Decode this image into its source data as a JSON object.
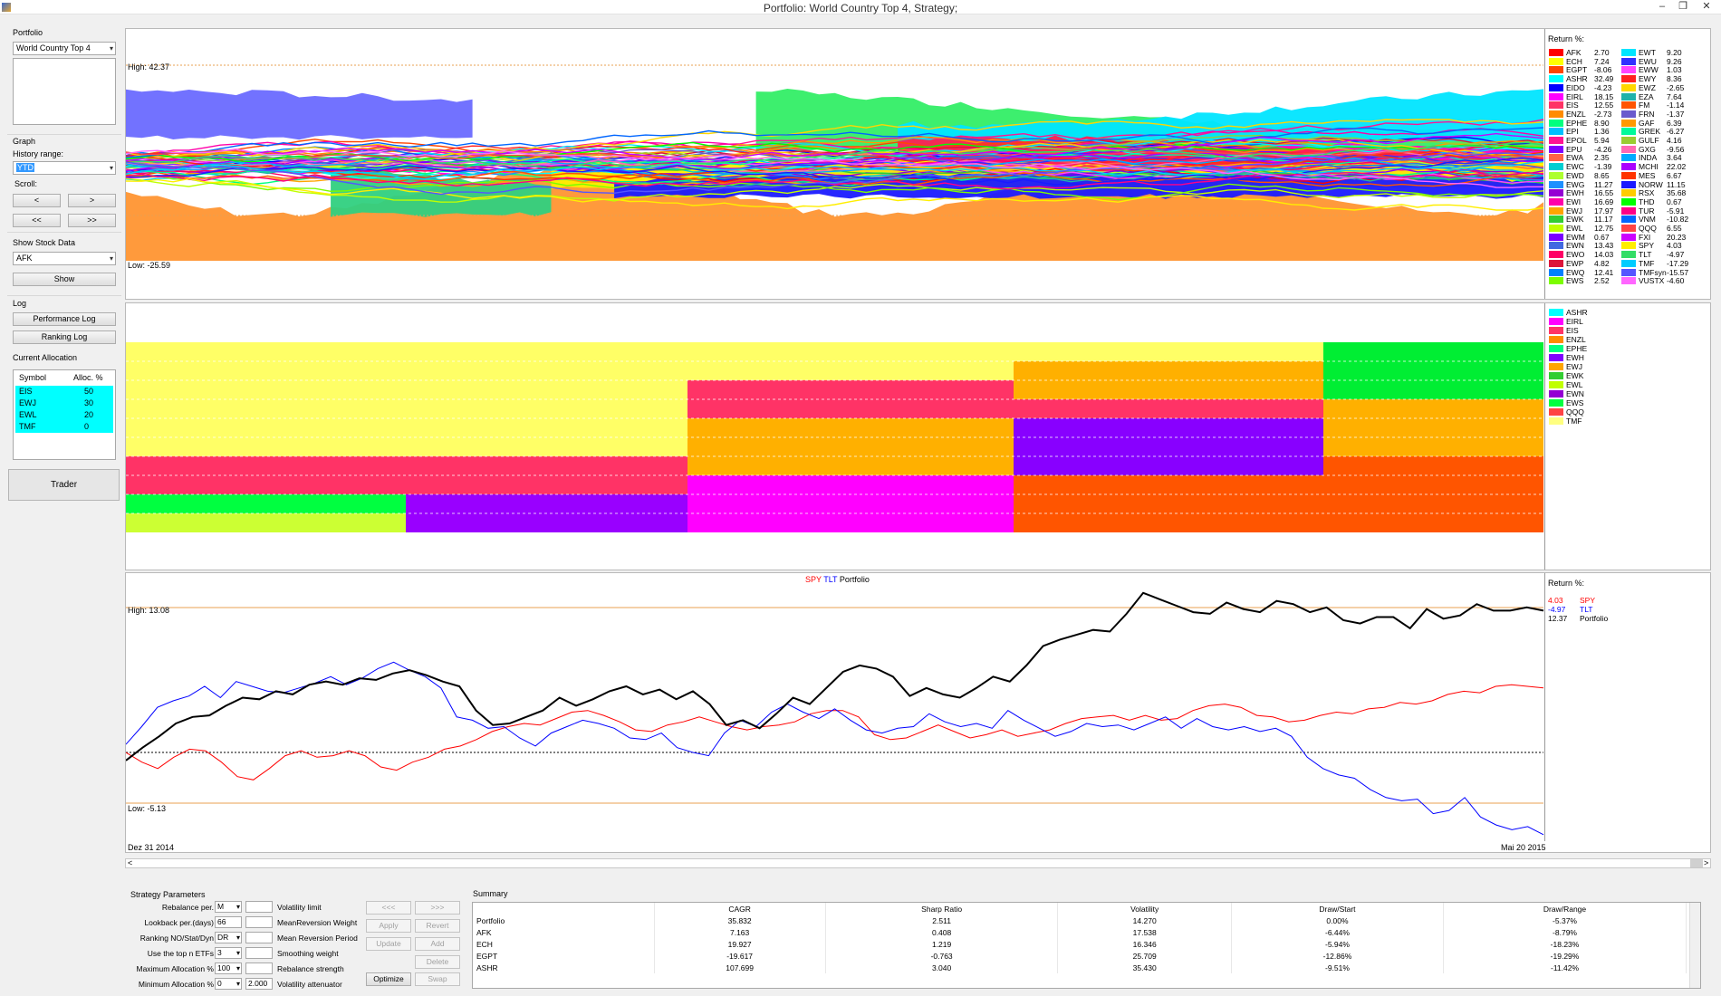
{
  "window": {
    "title": "Portfolio: World Country Top 4, Strategy;"
  },
  "sidebar": {
    "portfolio_label": "Portfolio",
    "portfolio_value": "World Country Top 4",
    "graph_label": "Graph",
    "history_label": "History range:",
    "history_value": "YTD",
    "scroll_label": "Scroll:",
    "scroll_back": "<",
    "scroll_fwd": ">",
    "scroll_back_far": "<<",
    "scroll_fwd_far": ">>",
    "stock_label": "Show Stock Data",
    "stock_value": "AFK",
    "show_label": "Show",
    "log_label": "Log",
    "perf_log": "Performance Log",
    "rank_log": "Ranking Log",
    "alloc_label": "Current Allocation",
    "alloc_head_symbol": "Symbol",
    "alloc_head_pct": "Alloc. %",
    "alloc_rows": [
      {
        "symbol": "EIS",
        "pct": "50"
      },
      {
        "symbol": "EWJ",
        "pct": "30"
      },
      {
        "symbol": "EWL",
        "pct": "20"
      },
      {
        "symbol": "TMF",
        "pct": "0"
      }
    ],
    "trader_label": "Trader"
  },
  "top_chart": {
    "high": "High: 42.37",
    "low": "Low: -25.59",
    "legend_title": "Return %:",
    "legend_left": [
      {
        "s": "AFK",
        "v": "2.70",
        "c": "#ff0000"
      },
      {
        "s": "ECH",
        "v": "7.24",
        "c": "#ffff00"
      },
      {
        "s": "EGPT",
        "v": "-8.06",
        "c": "#ff4500"
      },
      {
        "s": "ASHR",
        "v": "32.49",
        "c": "#00ffff"
      },
      {
        "s": "EIDO",
        "v": "-4.23",
        "c": "#0000ff"
      },
      {
        "s": "EIRL",
        "v": "18.15",
        "c": "#ff00ff"
      },
      {
        "s": "EIS",
        "v": "12.55",
        "c": "#ff3366"
      },
      {
        "s": "ENZL",
        "v": "-2.73",
        "c": "#ff8c00"
      },
      {
        "s": "EPHE",
        "v": "8.90",
        "c": "#00ff7f"
      },
      {
        "s": "EPI",
        "v": "1.36",
        "c": "#00bfff"
      },
      {
        "s": "EPOL",
        "v": "5.94",
        "c": "#ff1493"
      },
      {
        "s": "EPU",
        "v": "-4.26",
        "c": "#8000ff"
      },
      {
        "s": "EWA",
        "v": "2.35",
        "c": "#ff6347"
      },
      {
        "s": "EWC",
        "v": "-1.39",
        "c": "#00ced1"
      },
      {
        "s": "EWD",
        "v": "8.65",
        "c": "#adff2f"
      },
      {
        "s": "EWG",
        "v": "11.27",
        "c": "#1e90ff"
      },
      {
        "s": "EWH",
        "v": "16.55",
        "c": "#9400d3"
      },
      {
        "s": "EWI",
        "v": "16.69",
        "c": "#ff00aa"
      },
      {
        "s": "EWJ",
        "v": "17.97",
        "c": "#ffa500"
      },
      {
        "s": "EWK",
        "v": "11.17",
        "c": "#32cd32"
      },
      {
        "s": "EWL",
        "v": "12.75",
        "c": "#c0ff00"
      },
      {
        "s": "EWM",
        "v": "0.67",
        "c": "#7b00ff"
      },
      {
        "s": "EWN",
        "v": "13.43",
        "c": "#4169e1"
      },
      {
        "s": "EWO",
        "v": "14.03",
        "c": "#ff0066"
      },
      {
        "s": "EWP",
        "v": "4.82",
        "c": "#dc143c"
      },
      {
        "s": "EWQ",
        "v": "12.41",
        "c": "#0080ff"
      },
      {
        "s": "EWS",
        "v": "2.52",
        "c": "#7cfc00"
      }
    ],
    "legend_right": [
      {
        "s": "EWT",
        "v": "9.20",
        "c": "#00e5ff"
      },
      {
        "s": "EWU",
        "v": "9.26",
        "c": "#3030ff"
      },
      {
        "s": "EWW",
        "v": "1.03",
        "c": "#ff44ff"
      },
      {
        "s": "EWY",
        "v": "8.36",
        "c": "#ff2020"
      },
      {
        "s": "EWZ",
        "v": "-2.65",
        "c": "#ffd700"
      },
      {
        "s": "EZA",
        "v": "7.64",
        "c": "#20b2aa"
      },
      {
        "s": "FM",
        "v": "-1.14",
        "c": "#ff5500"
      },
      {
        "s": "FRN",
        "v": "-1.37",
        "c": "#6a5acd"
      },
      {
        "s": "GAF",
        "v": "6.39",
        "c": "#ff9900"
      },
      {
        "s": "GREK",
        "v": "-6.27",
        "c": "#00fa9a"
      },
      {
        "s": "GULF",
        "v": "4.16",
        "c": "#9acd32"
      },
      {
        "s": "GXG",
        "v": "-9.56",
        "c": "#ff69b4"
      },
      {
        "s": "INDA",
        "v": "3.64",
        "c": "#00aaff"
      },
      {
        "s": "MCHI",
        "v": "22.02",
        "c": "#aa00ff"
      },
      {
        "s": "MES",
        "v": "6.67",
        "c": "#ff3300"
      },
      {
        "s": "NORW",
        "v": "11.15",
        "c": "#1a1aff"
      },
      {
        "s": "RSX",
        "v": "35.68",
        "c": "#ffcc00"
      },
      {
        "s": "THD",
        "v": "0.67",
        "c": "#00ff00"
      },
      {
        "s": "TUR",
        "v": "-5.91",
        "c": "#ff0088"
      },
      {
        "s": "VNM",
        "v": "-10.82",
        "c": "#0066ff"
      },
      {
        "s": "QQQ",
        "v": "6.55",
        "c": "#ff4444"
      },
      {
        "s": "FXI",
        "v": "20.23",
        "c": "#cc00ff"
      },
      {
        "s": "SPY",
        "v": "4.03",
        "c": "#ffee00"
      },
      {
        "s": "TLT",
        "v": "-4.97",
        "c": "#33dd66"
      },
      {
        "s": "TMF",
        "v": "-17.29",
        "c": "#00ccff"
      },
      {
        "s": "TMFsyn",
        "v": "-15.57",
        "c": "#5555ff"
      },
      {
        "s": "VUSTX",
        "v": "-4.60",
        "c": "#ff66ff"
      }
    ]
  },
  "ranking_legend": [
    {
      "s": "ASHR",
      "c": "#00ffff"
    },
    {
      "s": "EIRL",
      "c": "#ff00ff"
    },
    {
      "s": "EIS",
      "c": "#ff3366"
    },
    {
      "s": "ENZL",
      "c": "#ff8c00"
    },
    {
      "s": "EPHE",
      "c": "#00ff7f"
    },
    {
      "s": "EWH",
      "c": "#8000ff"
    },
    {
      "s": "EWJ",
      "c": "#ffa500"
    },
    {
      "s": "EWK",
      "c": "#32cd32"
    },
    {
      "s": "EWL",
      "c": "#c0ff00"
    },
    {
      "s": "EWN",
      "c": "#9400d3"
    },
    {
      "s": "EWS",
      "c": "#00ff40"
    },
    {
      "s": "QQQ",
      "c": "#ff4444"
    },
    {
      "s": "TMF",
      "c": "#ffff80"
    }
  ],
  "bottom_chart": {
    "title_spy": "SPY",
    "title_tlt": "TLT",
    "title_port": "Portfolio",
    "high": "High: 13.08",
    "low": "Low: -5.13",
    "legend_title": "Return %:",
    "legend": [
      {
        "v": "4.03",
        "s": "SPY",
        "c": "#ff0000"
      },
      {
        "v": "-4.97",
        "s": "TLT",
        "c": "#0000ff"
      },
      {
        "v": "12.37",
        "s": "Portfolio",
        "c": "#000000"
      }
    ],
    "date_start": "Dez 31 2014",
    "date_end": "Mai 20 2015"
  },
  "colors": {
    "spy": "#ff0000",
    "tlt": "#0000ff",
    "portfolio": "#000000",
    "guide": "#e8a050"
  },
  "params": {
    "title": "Strategy Parameters",
    "rebalance_label": "Rebalance per.",
    "rebalance_value": "M",
    "lookback_label": "Lookback per.(days)",
    "lookback_value": "66",
    "ranking_label": "Ranking NO/Stat/Dyn",
    "ranking_value": "DR",
    "topn_label": "Use the top n ETFs",
    "topn_value": "3",
    "maxalloc_label": "Maximum Allocation %",
    "maxalloc_value": "100",
    "minalloc_label": "Minimum Allocation %",
    "minalloc_value": "0",
    "vol_limit": "Volatility limit",
    "mr_weight": "MeanReversion Weight",
    "mr_period": "Mean Reversion Period",
    "smoothing": "Smoothing  weight",
    "rebal_strength": "Rebalance strength",
    "vol_att": "Volatility attenuator",
    "vol_att_value": "2.000",
    "optimize": "Optimize",
    "btn_prev": "<<<",
    "btn_next": ">>>",
    "btn_apply": "Apply",
    "btn_revert": "Revert",
    "btn_update": "Update",
    "btn_add": "Add",
    "btn_delete": "Delete",
    "btn_swap": "Swap"
  },
  "summary": {
    "title": "Summary",
    "columns": [
      "",
      "CAGR",
      "Sharp Ratio",
      "Volatility",
      "Draw/Start",
      "Draw/Range"
    ],
    "rows": [
      [
        "Portfolio",
        "35.832",
        "2.511",
        "14.270",
        "0.00%",
        "-5.37%"
      ],
      [
        "AFK",
        "7.163",
        "0.408",
        "17.538",
        "-6.44%",
        "-8.79%"
      ],
      [
        "ECH",
        "19.927",
        "1.219",
        "16.346",
        "-5.94%",
        "-18.23%"
      ],
      [
        "EGPT",
        "-19.617",
        "-0.763",
        "25.709",
        "-12.86%",
        "-19.29%"
      ],
      [
        "ASHR",
        "107.699",
        "3.040",
        "35.430",
        "-9.51%",
        "-11.42%"
      ]
    ]
  },
  "scroll_left": "<",
  "scroll_right": ">"
}
